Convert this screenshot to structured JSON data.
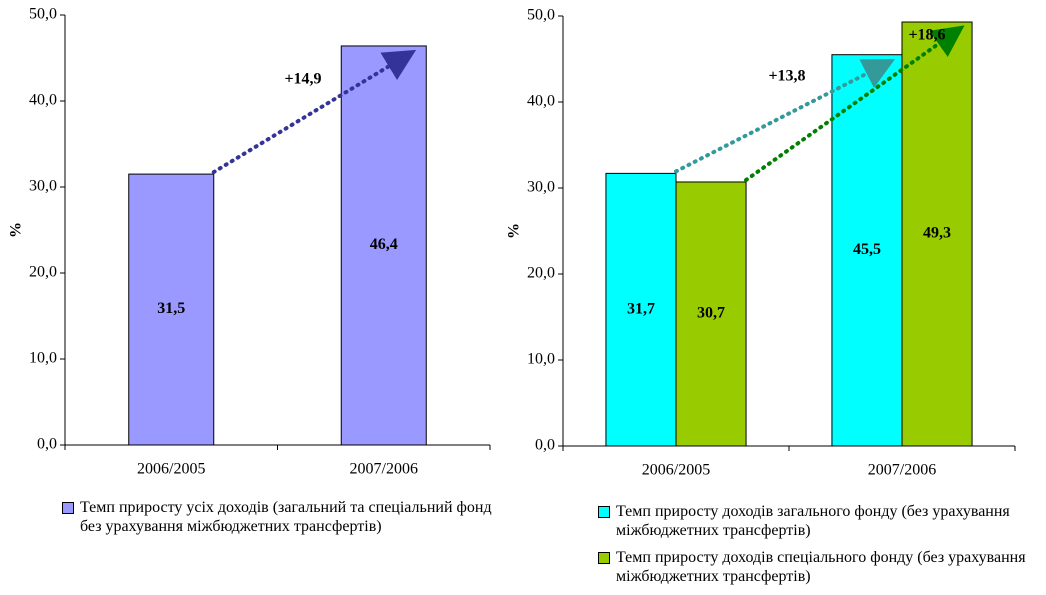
{
  "chart_data": [
    {
      "type": "bar",
      "ylabel": "%",
      "categories": [
        "2006/2005",
        "2007/2006"
      ],
      "series": [
        {
          "name": "Темп приросту усіх доходів (загальний та спеціальний фонд без урахування міжбюджетних трансфертів)",
          "color": "#9999ff",
          "values": [
            31.5,
            46.4
          ],
          "value_labels": [
            "31,5",
            "46,4"
          ]
        }
      ],
      "annotations": [
        "+14,9"
      ],
      "ylim": [
        0,
        50
      ],
      "yticks": [
        {
          "value": 0,
          "label": "0,0"
        },
        {
          "value": 10,
          "label": "10,0"
        },
        {
          "value": 20,
          "label": "20,0"
        },
        {
          "value": 30,
          "label": "30,0"
        },
        {
          "value": 40,
          "label": "40,0"
        },
        {
          "value": 50,
          "label": "50,0"
        }
      ]
    },
    {
      "type": "bar",
      "ylabel": "%",
      "categories": [
        "2006/2005",
        "2007/2006"
      ],
      "series": [
        {
          "name": "Темп приросту доходів загального фонду (без урахування міжбюджетних трансфертів)",
          "color": "#00ffff",
          "values": [
            31.7,
            45.5
          ],
          "value_labels": [
            "31,7",
            "45,5"
          ]
        },
        {
          "name": "Темп приросту доходів спеціального фонду (без урахування міжбюджетних трансфертів)",
          "color": "#99cc00",
          "values": [
            30.7,
            49.3
          ],
          "value_labels": [
            "30,7",
            "49,3"
          ]
        }
      ],
      "annotations": [
        "+13,8",
        "+18,6"
      ],
      "ylim": [
        0,
        50
      ],
      "yticks": [
        {
          "value": 0,
          "label": "0,0"
        },
        {
          "value": 10,
          "label": "10,0"
        },
        {
          "value": 20,
          "label": "20,0"
        },
        {
          "value": 30,
          "label": "30,0"
        },
        {
          "value": 40,
          "label": "40,0"
        },
        {
          "value": 50,
          "label": "50,0"
        }
      ]
    }
  ]
}
